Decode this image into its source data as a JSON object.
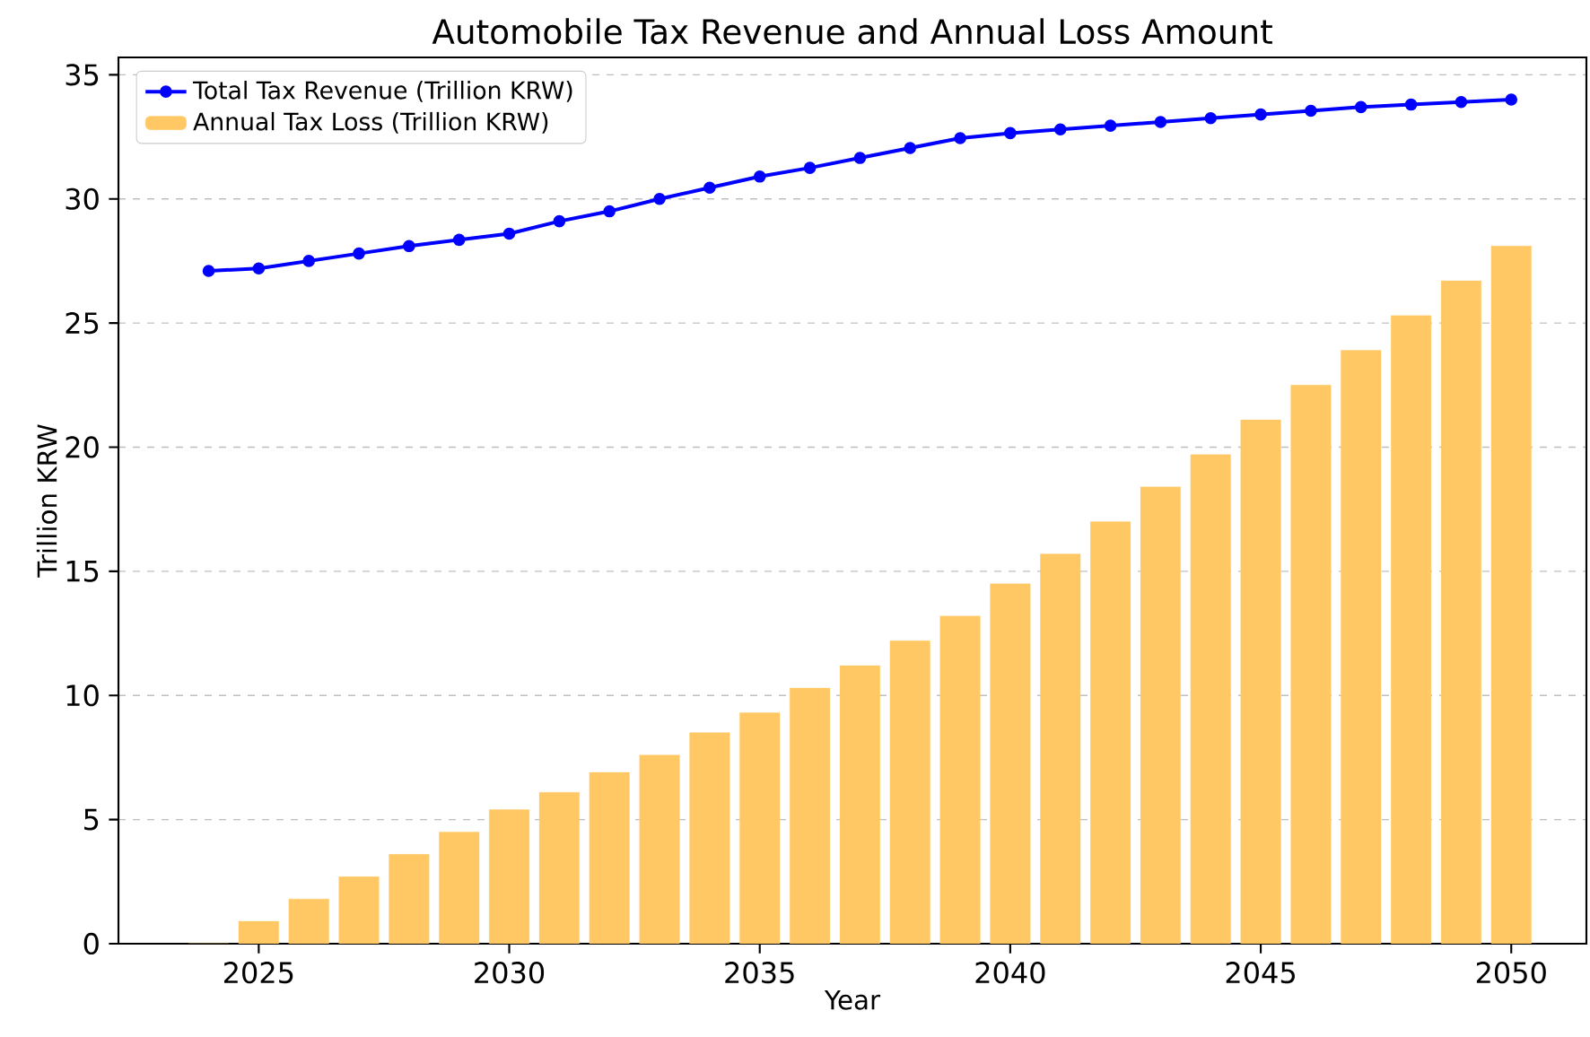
{
  "chart_data": {
    "type": "bar",
    "title": "Automobile Tax Revenue and Annual Loss Amount",
    "xlabel": "Year",
    "ylabel": "Trillion KRW",
    "x": [
      2024,
      2025,
      2026,
      2027,
      2028,
      2029,
      2030,
      2031,
      2032,
      2033,
      2034,
      2035,
      2036,
      2037,
      2038,
      2039,
      2040,
      2041,
      2042,
      2043,
      2044,
      2045,
      2046,
      2047,
      2048,
      2049,
      2050
    ],
    "series": [
      {
        "name": "Total Tax Revenue (Trillion KRW)",
        "type": "line",
        "color": "#0000ff",
        "marker": "circle",
        "values": [
          27.1,
          27.2,
          27.5,
          27.8,
          28.1,
          28.35,
          28.6,
          29.1,
          29.5,
          30.0,
          30.45,
          30.9,
          31.25,
          31.65,
          32.05,
          32.45,
          32.65,
          32.8,
          32.95,
          33.1,
          33.25,
          33.4,
          33.55,
          33.7,
          33.8,
          33.9,
          34.0
        ]
      },
      {
        "name": "Annual Tax Loss (Trillion KRW)",
        "color": "#ffc864",
        "values": [
          0,
          0.9,
          1.8,
          2.7,
          3.6,
          4.5,
          5.4,
          6.1,
          6.9,
          7.6,
          8.5,
          9.3,
          10.3,
          11.2,
          12.2,
          13.2,
          14.5,
          15.7,
          17.0,
          18.4,
          19.7,
          21.1,
          22.5,
          23.9,
          25.3,
          26.7,
          28.1
        ]
      }
    ],
    "xlim": [
      2022.2,
      2051.5
    ],
    "ylim": [
      0,
      35.7
    ],
    "xticks": [
      2025,
      2030,
      2035,
      2040,
      2045,
      2050
    ],
    "yticks": [
      0,
      5,
      10,
      15,
      20,
      25,
      30,
      35
    ],
    "grid": "y",
    "legend": "top left"
  }
}
